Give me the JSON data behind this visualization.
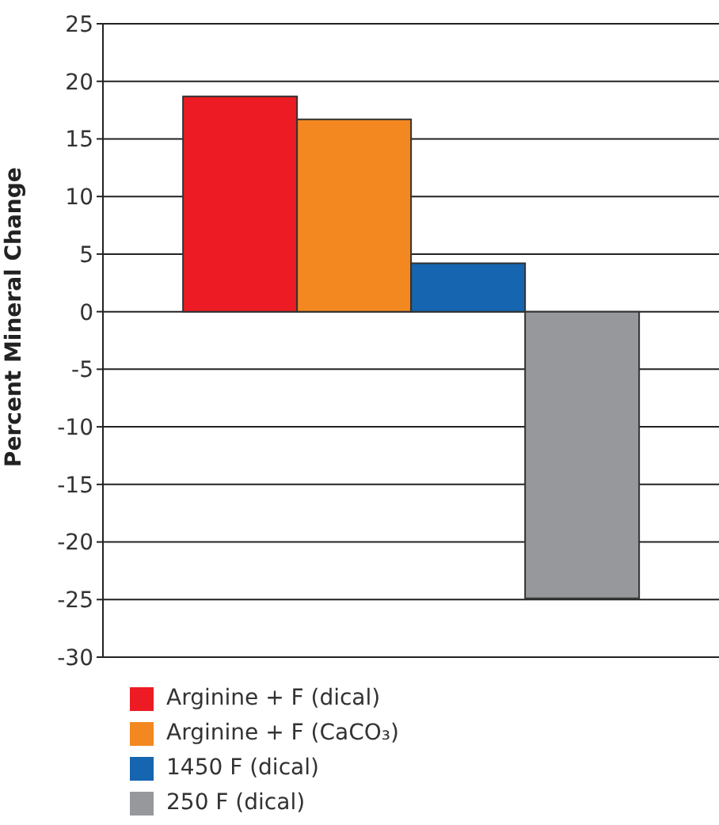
{
  "chart_data": {
    "type": "bar",
    "ylabel": "Percent Mineral Change",
    "categories": [
      null
    ],
    "series": [
      {
        "name": "Arginine + F (dical)",
        "color": "#ed1c24",
        "values": [
          18.7
        ]
      },
      {
        "name": "Arginine + F (CaCO₃)",
        "color": "#f38820",
        "values": [
          16.7
        ]
      },
      {
        "name": "1450 F (dical)",
        "color": "#1565b0",
        "values": [
          4.2
        ]
      },
      {
        "name": "250 F (dical)",
        "color": "#97989b",
        "values": [
          -24.9
        ]
      }
    ],
    "ylim": [
      -30,
      25
    ],
    "yticks": [
      -30,
      -25,
      -20,
      -15,
      -10,
      -5,
      0,
      5,
      10,
      15,
      20,
      25
    ],
    "grid": "y",
    "legend": "bottom left"
  }
}
